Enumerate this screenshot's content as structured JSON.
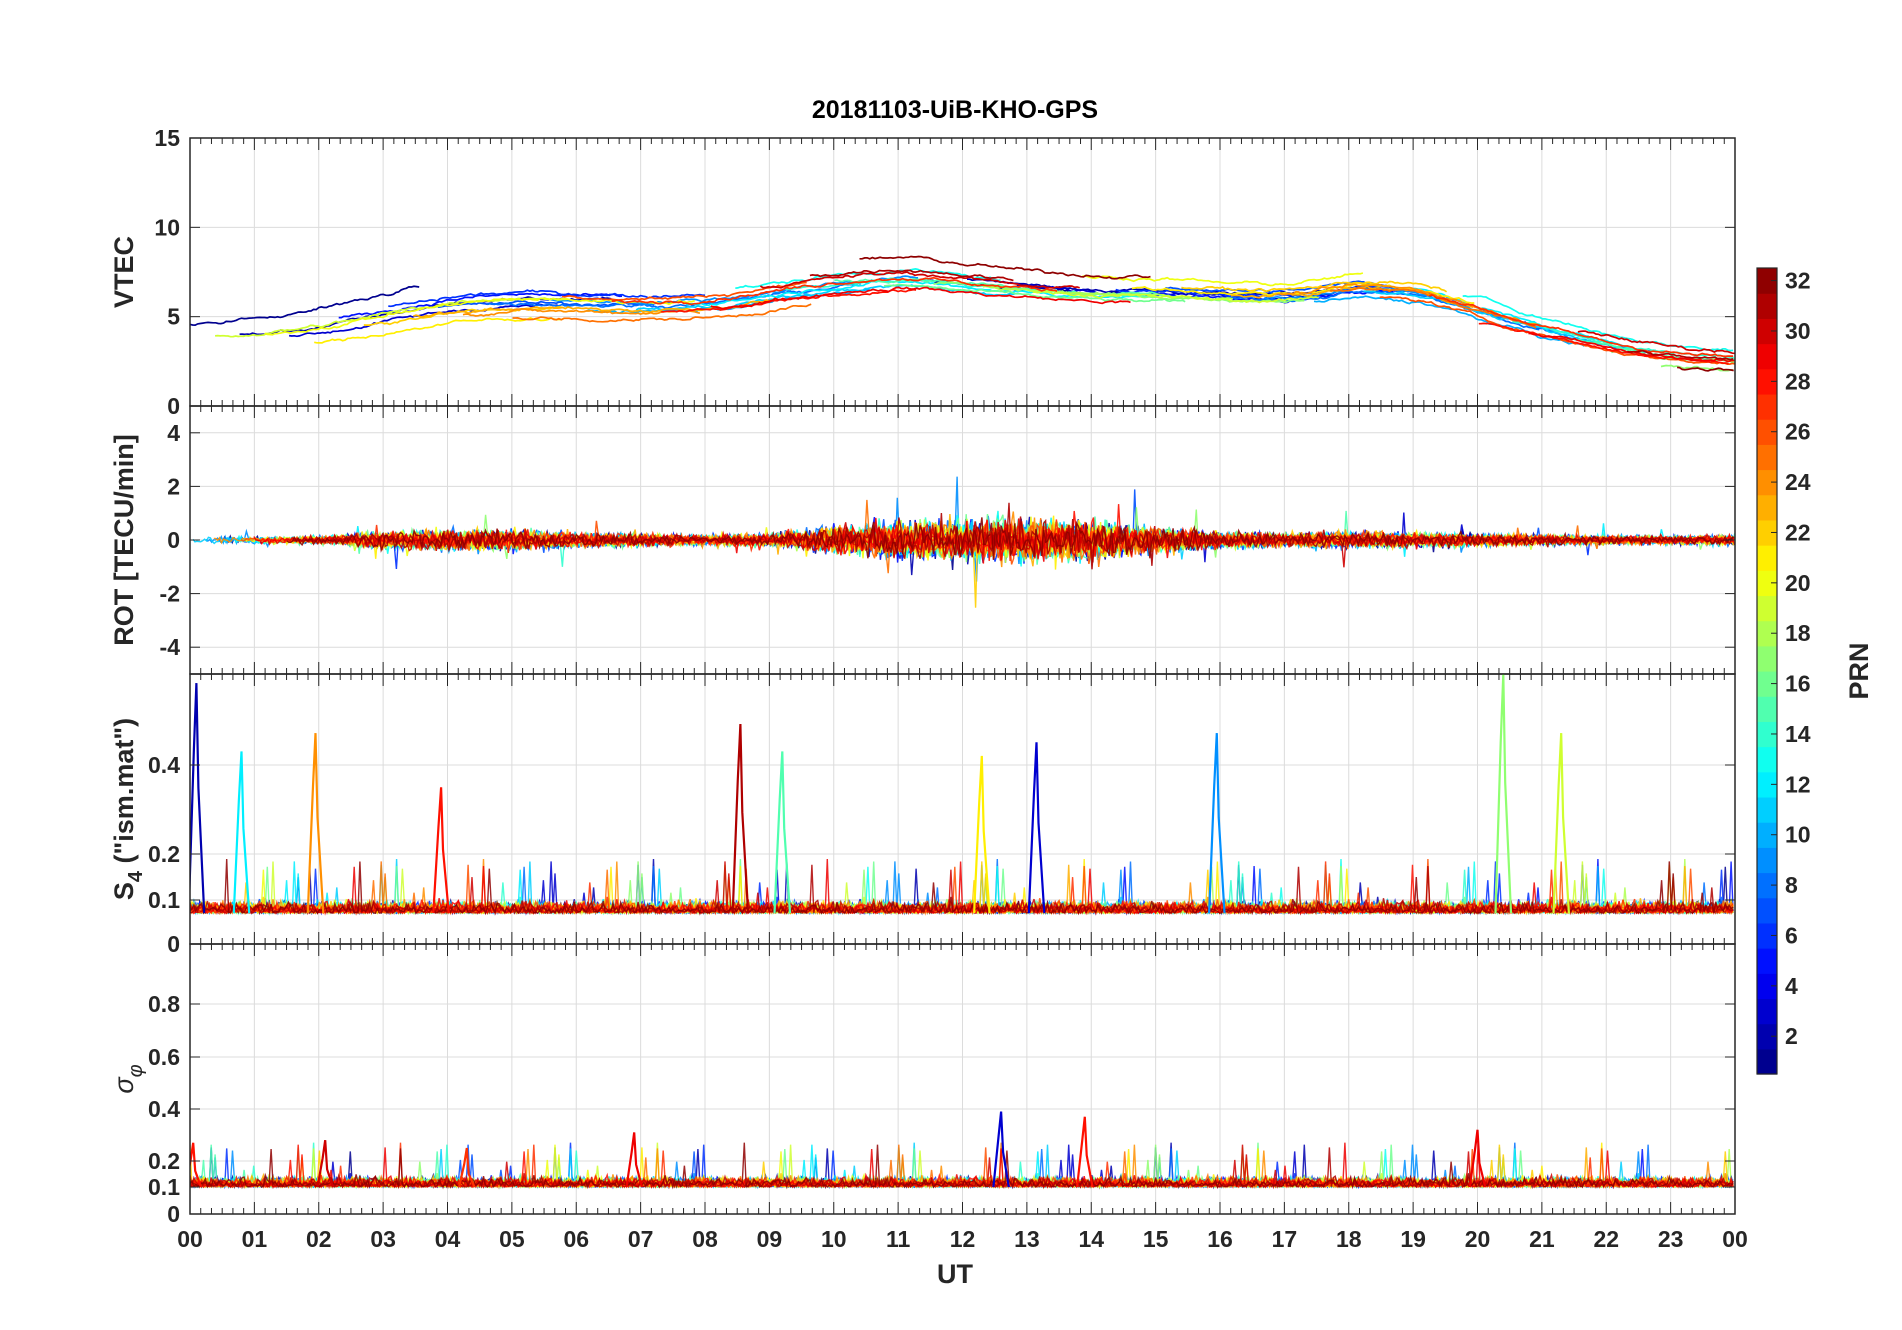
{
  "chart_data": {
    "type": "line",
    "title": "20181103-UiB-KHO-GPS",
    "xlabel": "UT",
    "x_tick_labels": [
      "00",
      "01",
      "02",
      "03",
      "04",
      "05",
      "06",
      "07",
      "08",
      "09",
      "10",
      "11",
      "12",
      "13",
      "14",
      "15",
      "16",
      "17",
      "18",
      "19",
      "20",
      "21",
      "22",
      "23",
      "00"
    ],
    "x_range_hours": [
      0,
      24
    ],
    "colorbar": {
      "label": "PRN",
      "range": [
        1,
        32
      ],
      "ticks": [
        "2",
        "4",
        "6",
        "8",
        "10",
        "12",
        "14",
        "16",
        "18",
        "20",
        "22",
        "24",
        "26",
        "28",
        "30",
        "32"
      ],
      "colormap": "jet"
    },
    "prns": [
      1,
      2,
      3,
      5,
      6,
      7,
      8,
      9,
      10,
      11,
      12,
      13,
      14,
      15,
      16,
      17,
      18,
      19,
      20,
      21,
      22,
      23,
      24,
      25,
      26,
      27,
      28,
      29,
      30,
      31,
      32
    ],
    "panels": [
      {
        "ylabel": "VTEC",
        "ylim": [
          0,
          15
        ],
        "yticks": [
          "0",
          "5",
          "10",
          "15"
        ],
        "envelope": {
          "hours": [
            0,
            1,
            2,
            3,
            4,
            5,
            6,
            7,
            8,
            9,
            10,
            11,
            12,
            13,
            14,
            15,
            16,
            17,
            18,
            19,
            20,
            21,
            22,
            23,
            24
          ],
          "baseline": [
            3.8,
            4.0,
            4.5,
            5.2,
            5.8,
            6.0,
            5.9,
            5.8,
            6.0,
            6.5,
            7.0,
            7.2,
            6.8,
            6.5,
            6.3,
            6.2,
            6.0,
            6.0,
            6.5,
            6.2,
            5.0,
            4.0,
            3.2,
            2.7,
            2.5
          ],
          "spread": [
            0.9,
            1.2,
            1.3,
            1.4,
            1.5,
            1.5,
            1.4,
            1.3,
            1.4,
            1.4,
            1.5,
            1.5,
            1.4,
            1.3,
            1.3,
            1.3,
            1.2,
            1.2,
            1.3,
            1.3,
            1.2,
            1.0,
            0.9,
            0.8,
            0.8
          ]
        }
      },
      {
        "ylabel": "ROT [TECU/min]",
        "ylim": [
          -5,
          5
        ],
        "yticks": [
          "-4",
          "-2",
          "0",
          "2",
          "4"
        ],
        "envelope": {
          "hours": [
            0,
            1,
            2,
            3,
            4,
            5,
            6,
            7,
            8,
            9,
            10,
            11,
            12,
            13,
            14,
            15,
            16,
            17,
            18,
            19,
            20,
            21,
            22,
            23,
            24
          ],
          "amplitude": [
            0.25,
            0.2,
            0.2,
            0.5,
            0.6,
            0.6,
            0.45,
            0.35,
            0.3,
            0.35,
            0.8,
            1.1,
            1.2,
            1.3,
            1.2,
            0.7,
            0.5,
            0.4,
            0.5,
            0.4,
            0.35,
            0.3,
            0.25,
            0.25,
            0.3
          ]
        }
      },
      {
        "ylabel": "S4 (\"ism.mat\")",
        "ylabel_main": "S",
        "ylabel_sub": "4",
        "ylabel_rest": " (\"ism.mat\")",
        "ylim": [
          0,
          0.6
        ],
        "yticks": [
          "0",
          "0.1",
          "0.2",
          "0.4"
        ],
        "baseline": 0.07,
        "spikes": [
          {
            "hour": 0.1,
            "value": 0.58,
            "prn": 2
          },
          {
            "hour": 0.8,
            "value": 0.43,
            "prn": 12
          },
          {
            "hour": 1.95,
            "value": 0.47,
            "prn": 24
          },
          {
            "hour": 3.9,
            "value": 0.35,
            "prn": 28
          },
          {
            "hour": 8.55,
            "value": 0.49,
            "prn": 31
          },
          {
            "hour": 9.2,
            "value": 0.43,
            "prn": 15
          },
          {
            "hour": 12.3,
            "value": 0.42,
            "prn": 21
          },
          {
            "hour": 13.15,
            "value": 0.45,
            "prn": 3
          },
          {
            "hour": 15.95,
            "value": 0.47,
            "prn": 9
          },
          {
            "hour": 20.4,
            "value": 0.6,
            "prn": 17
          },
          {
            "hour": 21.3,
            "value": 0.47,
            "prn": 19
          }
        ]
      },
      {
        "ylabel": "σφ",
        "ylabel_main": "σ",
        "ylabel_sub": "φ",
        "ylim": [
          0,
          1
        ],
        "yticks": [
          "0",
          "0.1",
          "0.2",
          "0.4",
          "0.6",
          "0.8"
        ],
        "baseline": 0.1,
        "spikes": [
          {
            "hour": 0.05,
            "value": 0.27,
            "prn": 28
          },
          {
            "hour": 2.1,
            "value": 0.28,
            "prn": 30
          },
          {
            "hour": 4.3,
            "value": 0.25,
            "prn": 27
          },
          {
            "hour": 6.9,
            "value": 0.31,
            "prn": 29
          },
          {
            "hour": 12.6,
            "value": 0.39,
            "prn": 3
          },
          {
            "hour": 13.9,
            "value": 0.37,
            "prn": 28
          },
          {
            "hour": 20.0,
            "value": 0.32,
            "prn": 29
          }
        ]
      }
    ]
  }
}
